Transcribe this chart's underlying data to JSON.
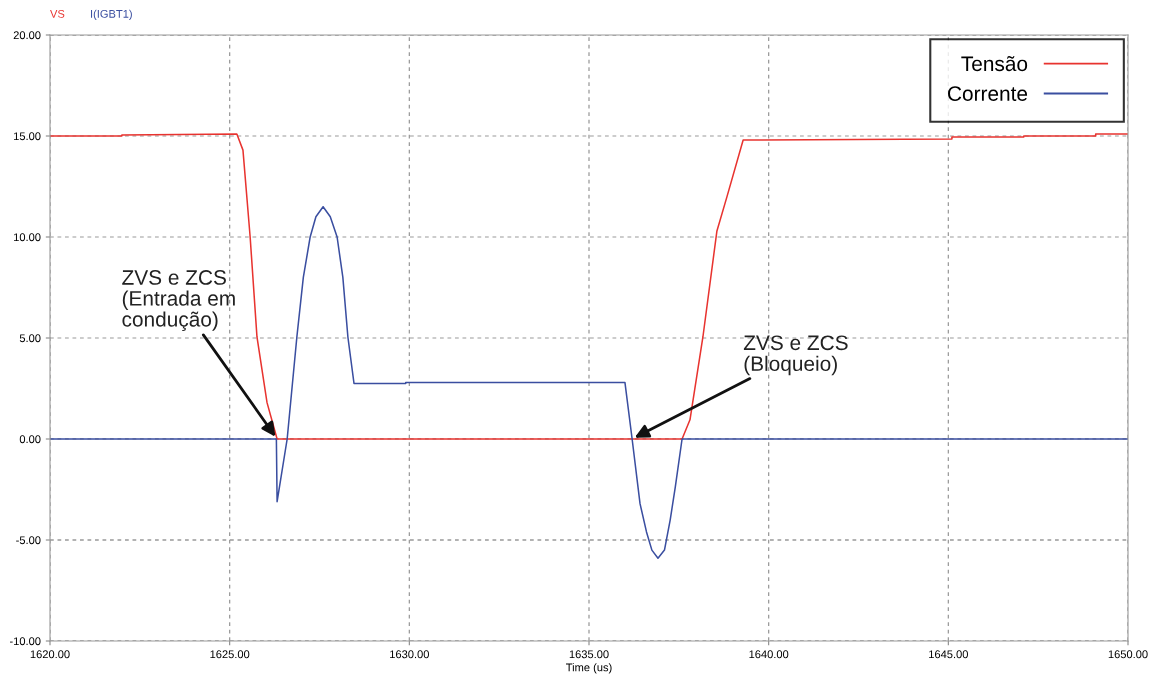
{
  "chart_data": {
    "type": "line",
    "xlabel": "Time (us)",
    "xlim": [
      1620,
      1650
    ],
    "ylim": [
      -10,
      20
    ],
    "xticks": [
      {
        "value": 1620,
        "label": "1620.00"
      },
      {
        "value": 1625,
        "label": "1625.00"
      },
      {
        "value": 1630,
        "label": "1630.00"
      },
      {
        "value": 1635,
        "label": "1635.00"
      },
      {
        "value": 1640,
        "label": "1640.00"
      },
      {
        "value": 1645,
        "label": "1645.00"
      },
      {
        "value": 1650,
        "label": "1650.00"
      }
    ],
    "yticks": [
      {
        "value": -10,
        "label": "-10.00"
      },
      {
        "value": -5,
        "label": "-5.00"
      },
      {
        "value": 0,
        "label": "0.00"
      },
      {
        "value": 5,
        "label": "5.00"
      },
      {
        "value": 10,
        "label": "10.00"
      },
      {
        "value": 15,
        "label": "15.00"
      },
      {
        "value": 20,
        "label": "20.00"
      }
    ],
    "grid": true,
    "legend": "top right",
    "line_style": "solid",
    "marker": "none",
    "series": [
      {
        "name": "Tensão",
        "color": "#e8332f",
        "x": [
          1620,
          1622,
          1622,
          1625.2,
          1625.37,
          1625.57,
          1625.76,
          1626.04,
          1626.32,
          1637.59,
          1637.81,
          1638.17,
          1638.56,
          1638.84,
          1639.29,
          1645.1,
          1645.1,
          1647.1,
          1647.1,
          1649.1,
          1649.1,
          1650
        ],
        "values": [
          15.0,
          15.0,
          15.05,
          15.1,
          14.3,
          10.0,
          5.05,
          1.8,
          0,
          0,
          0.95,
          5.05,
          10.3,
          12.0,
          14.8,
          14.85,
          14.95,
          14.95,
          15.0,
          15.0,
          15.1,
          15.1
        ]
      },
      {
        "name": "Corrente",
        "color": "#3a4ea0",
        "x": [
          1620,
          1626.3,
          1626.32,
          1626.6,
          1626.87,
          1627.05,
          1627.24,
          1627.4,
          1627.6,
          1627.8,
          1627.99,
          1628.15,
          1628.29,
          1628.46,
          1629.9,
          1629.9,
          1636.0,
          1636.2,
          1636.42,
          1636.6,
          1636.75,
          1636.92,
          1637.1,
          1637.26,
          1637.4,
          1637.59,
          1650
        ],
        "values": [
          0,
          0,
          -3.1,
          0,
          5.05,
          8.0,
          10.0,
          11.0,
          11.5,
          11.0,
          10.0,
          8.0,
          5.05,
          2.75,
          2.75,
          2.8,
          2.8,
          0,
          -3.2,
          -4.6,
          -5.5,
          -5.9,
          -5.5,
          -4.0,
          -2.4,
          0,
          0
        ]
      }
    ],
    "annotations": [
      "VS",
      "I(IGBT1)",
      {
        "text": "ZVS e ZCS\n(Entrada em\ncondução)",
        "x": 1626.32,
        "y": 0
      },
      {
        "text": "ZVS e ZCS\n(Bloqueio)",
        "x": 1636.2,
        "y": 0
      }
    ]
  }
}
